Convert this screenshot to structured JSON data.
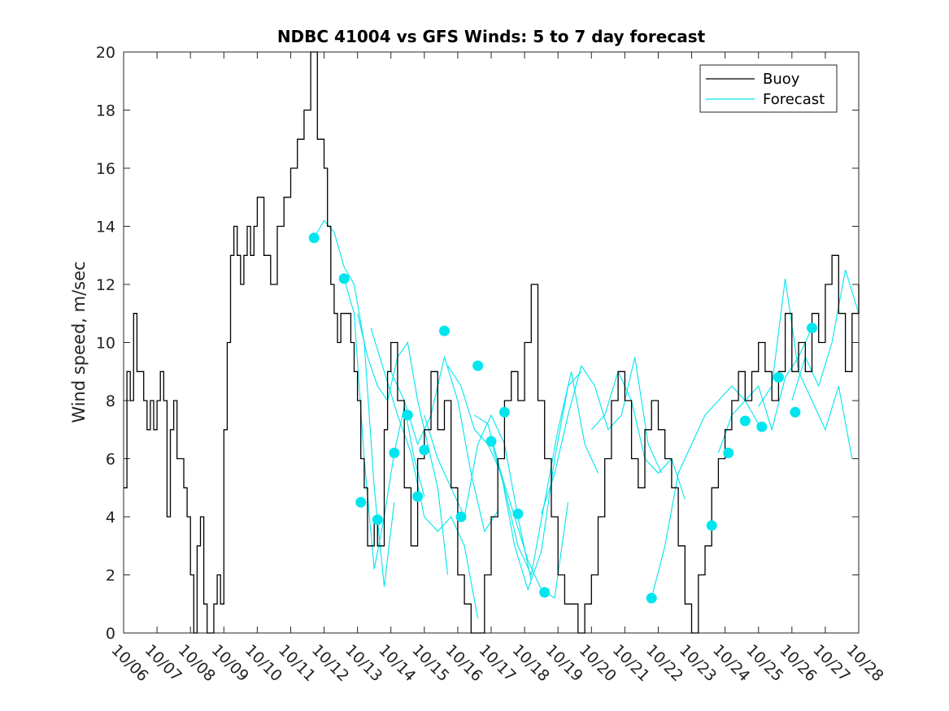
{
  "chart_data": {
    "type": "line",
    "title": "NDBC 41004 vs GFS Winds: 5 to 7 day forecast",
    "xlabel": "",
    "ylabel": "Wind speed, m/sec",
    "xlim": [
      "10/06",
      "10/28"
    ],
    "ylim": [
      0,
      20
    ],
    "y_ticks": [
      0,
      2,
      4,
      6,
      8,
      10,
      12,
      14,
      16,
      18,
      20
    ],
    "x_ticks": [
      "10/06",
      "10/07",
      "10/08",
      "10/09",
      "10/10",
      "10/11",
      "10/12",
      "10/13",
      "10/14",
      "10/15",
      "10/16",
      "10/17",
      "10/18",
      "10/19",
      "10/20",
      "10/21",
      "10/22",
      "10/23",
      "10/24",
      "10/25",
      "10/26",
      "10/27",
      "10/28"
    ],
    "grid": false,
    "legend": {
      "position": "top-right",
      "entries": [
        {
          "name": "Buoy",
          "color": "#000000"
        },
        {
          "name": "Forecast",
          "color": "#00e5ee"
        }
      ]
    },
    "series": [
      {
        "name": "Buoy",
        "color": "#000000",
        "style": "stepped-line",
        "x_day": [
          0.0,
          0.1,
          0.2,
          0.3,
          0.4,
          0.5,
          0.6,
          0.7,
          0.8,
          0.9,
          1.0,
          1.1,
          1.2,
          1.3,
          1.4,
          1.5,
          1.6,
          1.7,
          1.8,
          1.9,
          2.0,
          2.1,
          2.2,
          2.3,
          2.4,
          2.5,
          2.6,
          2.7,
          2.8,
          2.9,
          3.0,
          3.1,
          3.2,
          3.3,
          3.4,
          3.5,
          3.6,
          3.7,
          3.8,
          3.9,
          4.0,
          4.2,
          4.4,
          4.6,
          4.8,
          5.0,
          5.2,
          5.4,
          5.6,
          5.8,
          6.0,
          6.1,
          6.2,
          6.3,
          6.4,
          6.5,
          6.6,
          6.7,
          6.8,
          6.9,
          7.0,
          7.1,
          7.2,
          7.3,
          7.4,
          7.5,
          7.6,
          7.7,
          7.8,
          7.9,
          8.0,
          8.2,
          8.4,
          8.6,
          8.8,
          9.0,
          9.2,
          9.4,
          9.6,
          9.8,
          10.0,
          10.2,
          10.4,
          10.6,
          10.8,
          11.0,
          11.2,
          11.4,
          11.6,
          11.8,
          12.0,
          12.2,
          12.4,
          12.6,
          12.8,
          13.0,
          13.2,
          13.4,
          13.6,
          13.8,
          14.0,
          14.2,
          14.4,
          14.6,
          14.8,
          15.0,
          15.2,
          15.4,
          15.6,
          15.8,
          16.0,
          16.2,
          16.4,
          16.6,
          16.8,
          17.0,
          17.2,
          17.4,
          17.6,
          17.8,
          18.0,
          18.2,
          18.4,
          18.6,
          18.8,
          19.0,
          19.2,
          19.4,
          19.6,
          19.8,
          20.0,
          20.2,
          20.4,
          20.6,
          20.8,
          21.0,
          21.2,
          21.4,
          21.6,
          21.8,
          22.0
        ],
        "y": [
          5,
          9,
          8,
          11,
          9,
          9,
          8,
          7,
          8,
          7,
          8,
          9,
          8,
          4,
          7,
          8,
          6,
          6,
          5,
          4,
          2,
          0,
          3,
          4,
          1,
          0,
          0,
          1,
          2,
          1,
          7,
          10,
          13,
          14,
          13,
          12,
          13,
          14,
          13,
          14,
          15,
          13,
          12,
          14,
          15,
          16,
          17,
          18,
          20,
          17,
          16,
          14,
          12,
          11,
          10,
          11,
          11,
          11,
          10,
          9,
          8,
          6,
          5,
          3,
          3,
          4,
          3,
          3,
          7,
          9,
          10,
          8,
          5,
          3,
          6,
          7,
          9,
          7,
          8,
          5,
          2,
          1,
          0,
          0,
          2,
          4,
          6,
          8,
          9,
          8,
          10,
          12,
          8,
          6,
          4,
          2,
          1,
          1,
          0,
          1,
          2,
          4,
          6,
          8,
          9,
          8,
          6,
          5,
          7,
          8,
          7,
          6,
          5,
          3,
          1,
          0,
          2,
          3,
          5,
          6,
          7,
          8,
          9,
          8,
          9,
          10,
          9,
          8,
          9,
          11,
          9,
          10,
          9,
          11,
          10,
          12,
          13,
          11,
          9,
          11,
          12
        ]
      },
      {
        "name": "Forecast",
        "color": "#00e5ee",
        "style": "thin-lines",
        "traces": [
          {
            "x_day": [
              5.7,
              6.0,
              6.3,
              6.6,
              6.9,
              7.2,
              7.5,
              7.8,
              8.1
            ],
            "y": [
              13.6,
              14.2,
              13.8,
              12.6,
              12.0,
              10.0,
              5.0,
              1.6,
              4.5
            ]
          },
          {
            "x_day": [
              6.6,
              6.9,
              7.2,
              7.5,
              7.8,
              8.1,
              8.4,
              8.7,
              9.0
            ],
            "y": [
              12.2,
              11.0,
              6.0,
              2.2,
              4.0,
              6.2,
              7.8,
              6.0,
              4.7
            ]
          },
          {
            "x_day": [
              7.0,
              7.3,
              7.6,
              7.9,
              8.2,
              8.5,
              8.8,
              9.1,
              9.4,
              9.7
            ],
            "y": [
              11.0,
              9.5,
              8.5,
              8.0,
              9.5,
              10.0,
              8.0,
              6.5,
              5.0,
              2.0
            ]
          },
          {
            "x_day": [
              7.4,
              7.8,
              8.2,
              8.6,
              9.0,
              9.4,
              9.8,
              10.2,
              10.6
            ],
            "y": [
              10.5,
              9.0,
              7.5,
              6.2,
              4.0,
              3.5,
              4.0,
              3.0,
              0.5
            ]
          },
          {
            "x_day": [
              8.0,
              8.4,
              8.8,
              9.2,
              9.6,
              10.0,
              10.4,
              10.8,
              11.2
            ],
            "y": [
              9.0,
              8.0,
              6.5,
              7.5,
              9.5,
              8.0,
              5.5,
              3.5,
              4.2
            ]
          },
          {
            "x_day": [
              9.0,
              9.4,
              9.8,
              10.2,
              10.6,
              11.0,
              11.4,
              11.8,
              12.2
            ],
            "y": [
              7.5,
              6.0,
              5.0,
              4.0,
              6.5,
              7.5,
              6.5,
              4.0,
              1.8
            ]
          },
          {
            "x_day": [
              9.7,
              10.1,
              10.5,
              10.9,
              11.3,
              11.7,
              12.1,
              12.5,
              12.9,
              13.3
            ],
            "y": [
              9.2,
              8.5,
              7.0,
              6.5,
              5.5,
              4.0,
              2.5,
              1.5,
              1.2,
              4.5
            ]
          },
          {
            "x_day": [
              10.5,
              10.9,
              11.3,
              11.7,
              12.1,
              12.5,
              12.9,
              13.3,
              13.7
            ],
            "y": [
              7.5,
              7.2,
              5.5,
              3.0,
              1.5,
              2.8,
              6.0,
              8.5,
              9.0
            ]
          },
          {
            "x_day": [
              11.0,
              11.4,
              11.8,
              12.2,
              12.6,
              13.0,
              13.4,
              13.8,
              14.2
            ],
            "y": [
              6.6,
              5.0,
              3.0,
              2.0,
              4.5,
              7.0,
              9.0,
              6.5,
              5.5
            ]
          },
          {
            "x_day": [
              12.5,
              12.9,
              13.3,
              13.7,
              14.1,
              14.5,
              14.9,
              15.3,
              15.7,
              16.1
            ],
            "y": [
              4.1,
              5.5,
              7.5,
              9.2,
              8.5,
              7.0,
              7.5,
              9.5,
              6.5,
              5.5
            ]
          },
          {
            "x_day": [
              14.0,
              14.4,
              14.8,
              15.2,
              15.6,
              16.0,
              16.4,
              16.8
            ],
            "y": [
              7.0,
              7.5,
              9.0,
              8.0,
              6.0,
              5.5,
              6.0,
              4.6
            ]
          },
          {
            "x_day": [
              15.8,
              16.2,
              16.6,
              17.0,
              17.4,
              17.8,
              18.2,
              18.6,
              19.0
            ],
            "y": [
              1.2,
              3.0,
              5.5,
              6.5,
              7.5,
              8.0,
              8.5,
              8.0,
              7.2
            ]
          },
          {
            "x_day": [
              17.8,
              18.2,
              18.6,
              19.0,
              19.4,
              19.8,
              20.2,
              20.6
            ],
            "y": [
              6.2,
              7.5,
              8.0,
              8.5,
              7.0,
              8.8,
              9.5,
              10.5
            ]
          },
          {
            "x_day": [
              19.0,
              19.4,
              19.8,
              20.2,
              20.6,
              21.0,
              21.4,
              21.8
            ],
            "y": [
              7.8,
              8.5,
              12.2,
              9.0,
              8.0,
              7.0,
              8.5,
              6.0
            ]
          },
          {
            "x_day": [
              20.0,
              20.4,
              20.8,
              21.2,
              21.6,
              22.0
            ],
            "y": [
              8.0,
              9.5,
              8.5,
              10.0,
              12.5,
              11.0
            ]
          }
        ],
        "markers_x_day": [
          5.7,
          6.6,
          7.1,
          7.6,
          8.1,
          8.5,
          8.8,
          9.0,
          9.6,
          10.1,
          10.6,
          11.0,
          11.4,
          11.8,
          12.6,
          15.8,
          17.6,
          18.1,
          18.6,
          19.1,
          19.6,
          20.1,
          20.6
        ],
        "markers_y": [
          13.6,
          12.2,
          4.5,
          3.9,
          6.2,
          7.5,
          4.7,
          6.3,
          10.4,
          4.0,
          9.2,
          6.6,
          7.6,
          4.1,
          1.4,
          1.2,
          3.7,
          6.2,
          7.3,
          7.1,
          8.8,
          7.6,
          10.5
        ]
      }
    ]
  }
}
